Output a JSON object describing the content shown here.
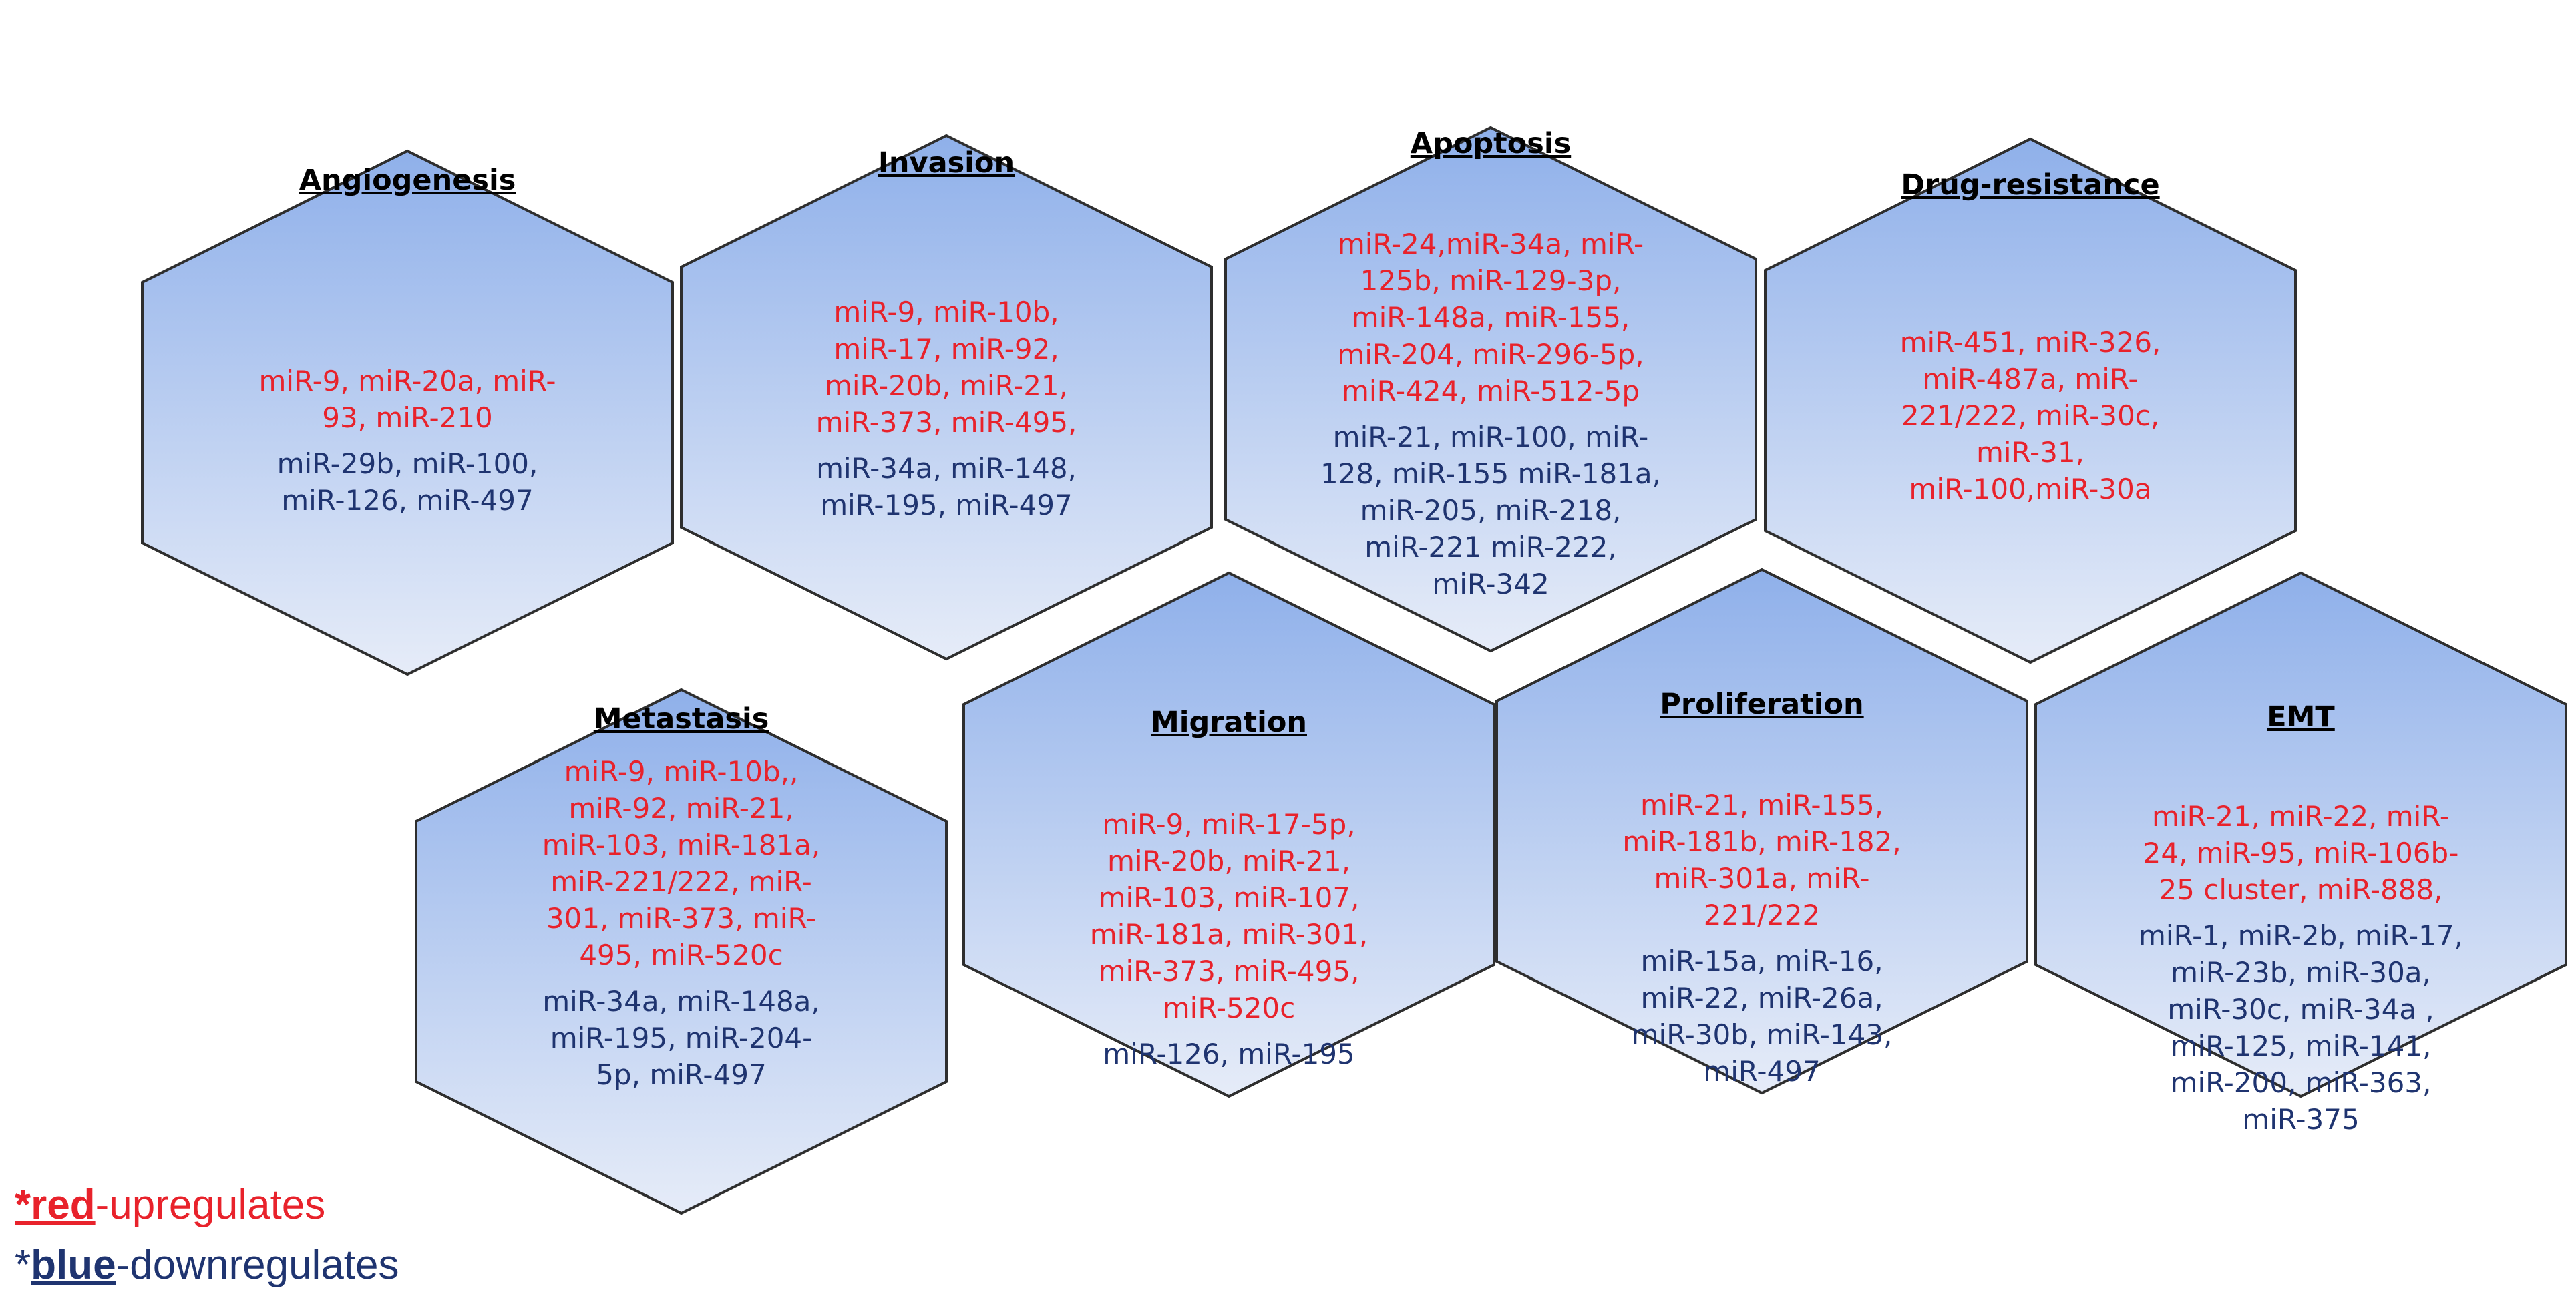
{
  "colors": {
    "hex_top": "#8fb0ea",
    "hex_bottom": "#e6ecf8",
    "hex_stroke": "#2e2e2e",
    "up": "#e8222b",
    "down": "#1f3470"
  },
  "hexagons": [
    {
      "title": "Angiogenesis",
      "up_lines": [
        "miR-9, miR-20a, miR-",
        "93, miR-210"
      ],
      "down_lines": [
        "miR-29b, miR-100,",
        "miR-126, miR-497"
      ]
    },
    {
      "title": "Invasion",
      "up_lines": [
        "miR-9, miR-10b,",
        "miR-17, miR-92,",
        "miR-20b, miR-21,",
        "miR-373, miR-495,"
      ],
      "down_lines": [
        "miR-34a, miR-148,",
        "miR-195, miR-497"
      ]
    },
    {
      "title": "Apoptosis",
      "up_lines": [
        "miR-24,miR-34a, miR-",
        "125b, miR-129-3p,",
        "miR-148a, miR-155,",
        "miR-204, miR-296-5p,",
        "miR-424, miR-512-5p"
      ],
      "down_lines": [
        "miR-21, miR-100, miR-",
        "128, miR-155 miR-181a,",
        "miR-205, miR-218,",
        "miR-221 miR-222,",
        "miR-342"
      ]
    },
    {
      "title": "Drug-resistance",
      "up_lines": [
        "miR-451, miR-326,",
        "miR-487a, miR-",
        "221/222, miR-30c,",
        "miR-31,",
        "miR-100,miR-30a"
      ],
      "down_lines": []
    },
    {
      "title": "Metastasis",
      "up_lines": [
        "miR-9, miR-10b,,",
        "miR-92, miR-21,",
        "miR-103, miR-181a,",
        "miR-221/222, miR-",
        "301, miR-373, miR-",
        "495, miR-520c"
      ],
      "down_lines": [
        "miR-34a, miR-148a,",
        "miR-195, miR-204-",
        "5p, miR-497"
      ]
    },
    {
      "title": "Migration",
      "up_lines": [
        "miR-9, miR-17-5p,",
        "miR-20b, miR-21,",
        "miR-103, miR-107,",
        "miR-181a, miR-301,",
        "miR-373, miR-495,",
        "miR-520c"
      ],
      "down_lines": [
        "miR-126, miR-195"
      ]
    },
    {
      "title": "Proliferation",
      "up_lines": [
        "miR-21, miR-155,",
        "miR-181b, miR-182,",
        "miR-301a, miR-",
        "221/222"
      ],
      "down_lines": [
        "miR-15a, miR-16,",
        "miR-22, miR-26a,",
        "miR-30b, miR-143,",
        "miR-497"
      ]
    },
    {
      "title": "EMT",
      "up_lines": [
        "miR-21, miR-22, miR-",
        "24, miR-95, miR-106b-",
        "25 cluster, miR-888,"
      ],
      "down_lines": [
        "miR-1, miR-2b, miR-17,",
        "miR-23b, miR-30a,",
        "miR-30c, miR-34a ,",
        "miR-125, miR-141,",
        "miR-200, miR-363,",
        "miR-375"
      ]
    }
  ],
  "legend": {
    "red_prefix": "*",
    "red_word": "red",
    "red_suffix": "-upregulates",
    "blue_prefix": "*",
    "blue_word": "blue",
    "blue_suffix": "-downregulates"
  }
}
